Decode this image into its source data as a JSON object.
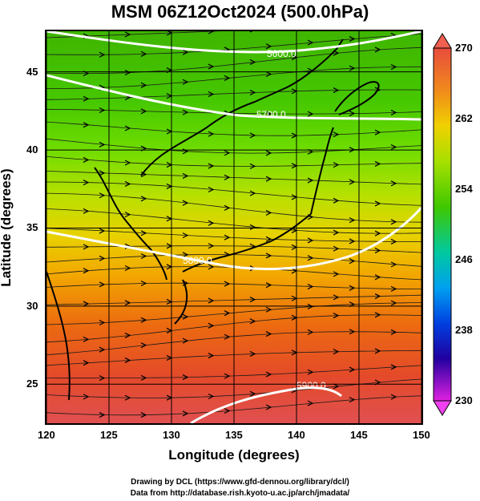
{
  "title": "MSM 06Z12Oct2024 (500.0hPa)",
  "map": {
    "xlabel": "Longitude (degrees)",
    "ylabel": "Latitude  (degrees)",
    "lon_range": [
      120,
      150
    ],
    "lat_range": [
      22.5,
      47.6
    ],
    "x_ticks": [
      "120",
      "125",
      "130",
      "135",
      "140",
      "145",
      "150"
    ],
    "y_ticks": [
      "25",
      "30",
      "35",
      "40",
      "45"
    ],
    "grid": true,
    "contours": [
      {
        "label": "5600.0",
        "color": "#ffffff"
      },
      {
        "label": "5700.0",
        "color": "#ffffff"
      },
      {
        "label": "5800.0",
        "color": "#ffffff"
      },
      {
        "label": "5900.0",
        "color": "#ffffff"
      }
    ]
  },
  "colorbar": {
    "min": 230,
    "max": 270,
    "labels": [
      "270",
      "262",
      "254",
      "246",
      "238",
      "230"
    ]
  },
  "credits": {
    "line1": "Drawing by DCL (https://www.gfd-dennou.org/library/dcl/)",
    "line2": "Data from http://database.rish.kyoto-u.ac.jp/arch/jmadata/"
  }
}
